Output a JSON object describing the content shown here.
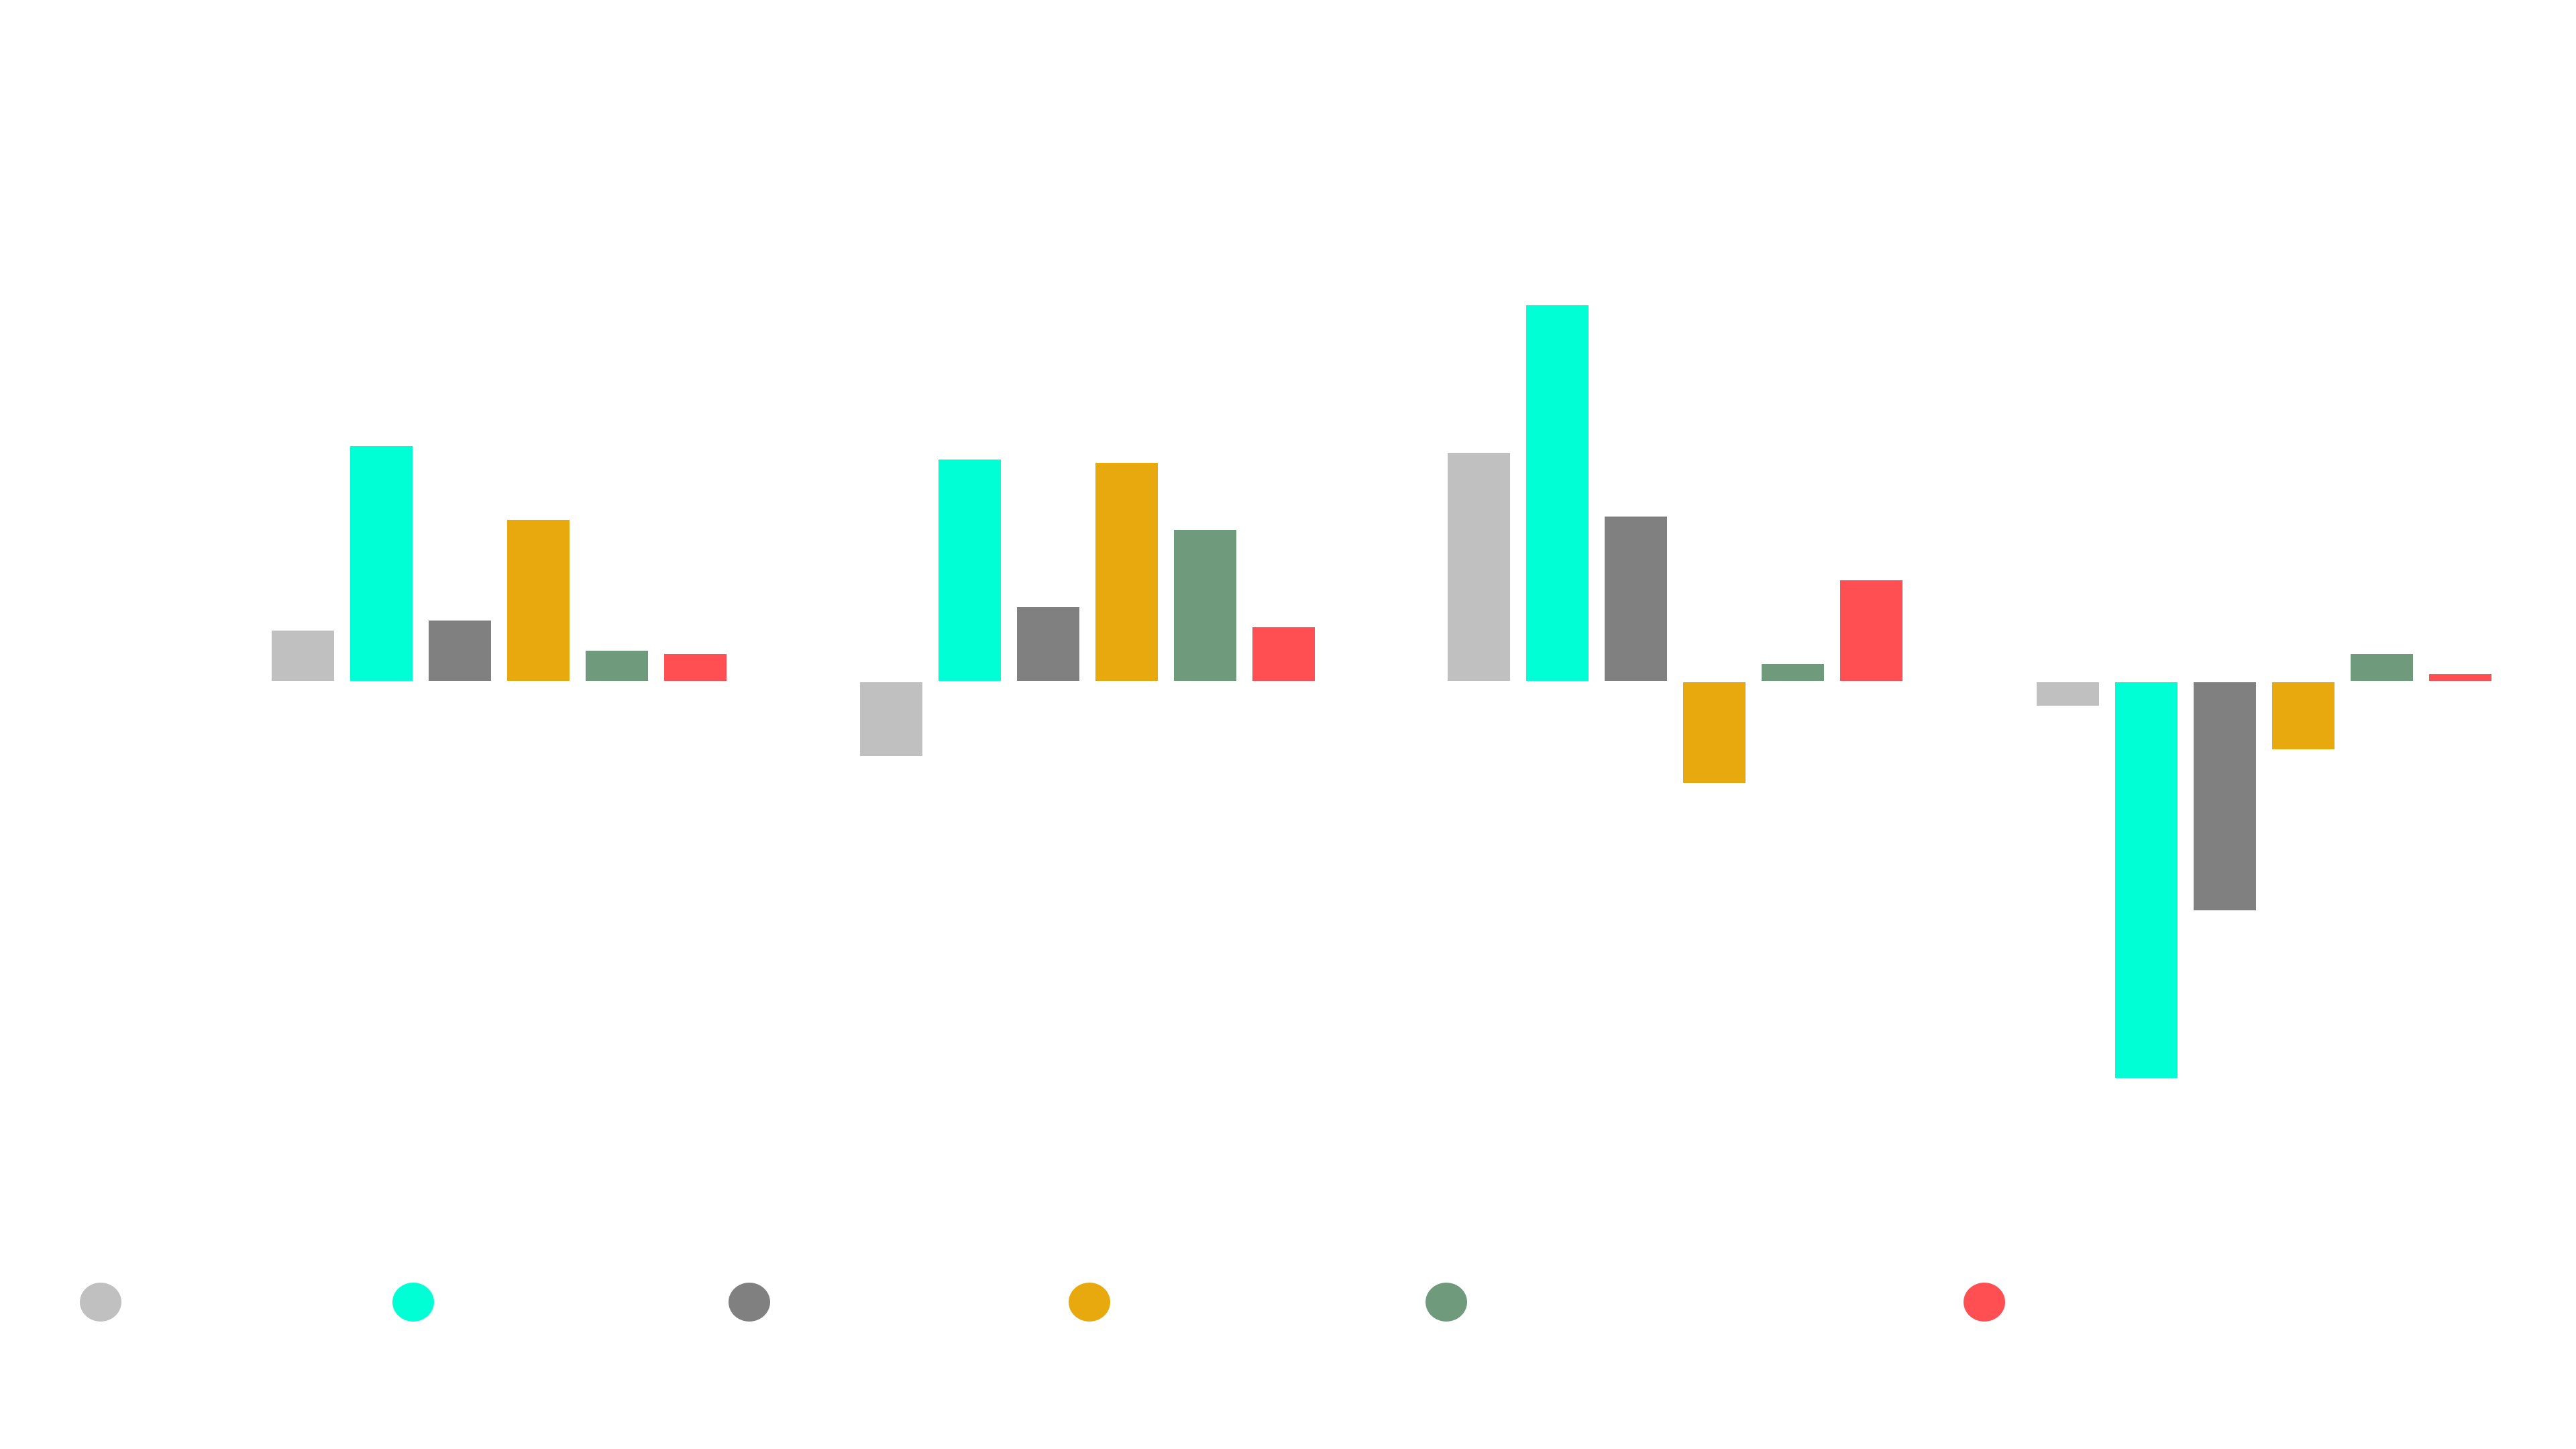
{
  "chart_data": {
    "type": "bar",
    "categories": [
      "",
      "",
      "",
      ""
    ],
    "ylim": [
      -1.2,
      1.1
    ],
    "grid": false,
    "legend_position": "bottom",
    "series": [
      {
        "color": "#c0c0c0",
        "values": [
          0.15,
          -0.22,
          0.68,
          -0.07
        ]
      },
      {
        "color": "#00ffd5",
        "values": [
          0.7,
          0.66,
          1.12,
          -1.18
        ]
      },
      {
        "color": "#808080",
        "values": [
          0.18,
          0.22,
          0.49,
          -0.68
        ]
      },
      {
        "color": "#e8a90f",
        "values": [
          0.48,
          0.65,
          -0.3,
          -0.2
        ]
      },
      {
        "color": "#6f9a7c",
        "values": [
          0.09,
          0.45,
          0.05,
          0.08
        ]
      },
      {
        "color": "#ff4f52",
        "values": [
          0.08,
          0.16,
          0.3,
          0.02
        ]
      }
    ]
  }
}
